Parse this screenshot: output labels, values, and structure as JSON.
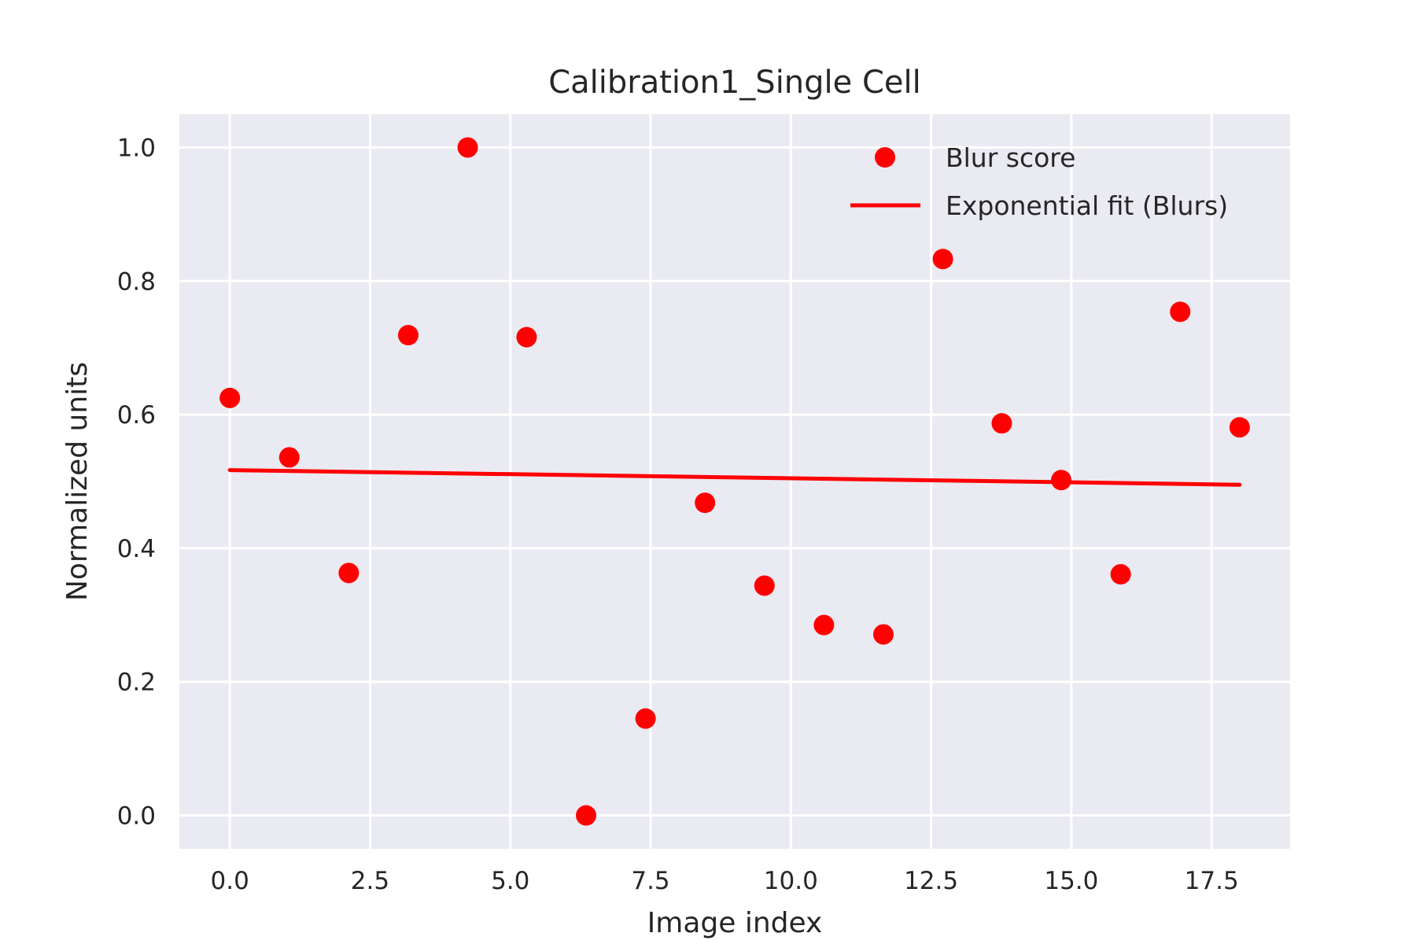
{
  "chart_data": {
    "type": "scatter",
    "title": "Calibration1_Single Cell",
    "xlabel": "Image index",
    "ylabel": "Normalized units",
    "xlim": [
      -0.9,
      18.9
    ],
    "ylim": [
      -0.05,
      1.05
    ],
    "x_ticks": [
      0.0,
      2.5,
      5.0,
      7.5,
      10.0,
      12.5,
      15.0,
      17.5
    ],
    "x_tick_labels": [
      "0.0",
      "2.5",
      "5.0",
      "7.5",
      "10.0",
      "12.5",
      "15.0",
      "17.5"
    ],
    "y_ticks": [
      0.0,
      0.2,
      0.4,
      0.6,
      0.8,
      1.0
    ],
    "y_tick_labels": [
      "0.0",
      "0.2",
      "0.4",
      "0.6",
      "0.8",
      "1.0"
    ],
    "grid": true,
    "legend_position": "top-right",
    "series": [
      {
        "name": "Blur score",
        "kind": "scatter",
        "color": "#ff0000",
        "x": [
          0.0,
          1.06,
          2.12,
          3.18,
          4.24,
          5.29,
          6.35,
          7.41,
          8.47,
          9.53,
          10.59,
          11.65,
          12.71,
          13.76,
          14.82,
          15.88,
          16.94,
          18.0
        ],
        "y": [
          0.625,
          0.536,
          0.363,
          0.719,
          1.0,
          0.716,
          0.0,
          0.145,
          0.468,
          0.344,
          0.285,
          0.271,
          0.833,
          0.587,
          0.502,
          0.361,
          0.754,
          0.581
        ]
      },
      {
        "name": "Exponential fit (Blurs)",
        "kind": "line",
        "color": "#ff0000",
        "x": [
          0.0,
          18.0
        ],
        "y": [
          0.517,
          0.495
        ]
      }
    ]
  }
}
